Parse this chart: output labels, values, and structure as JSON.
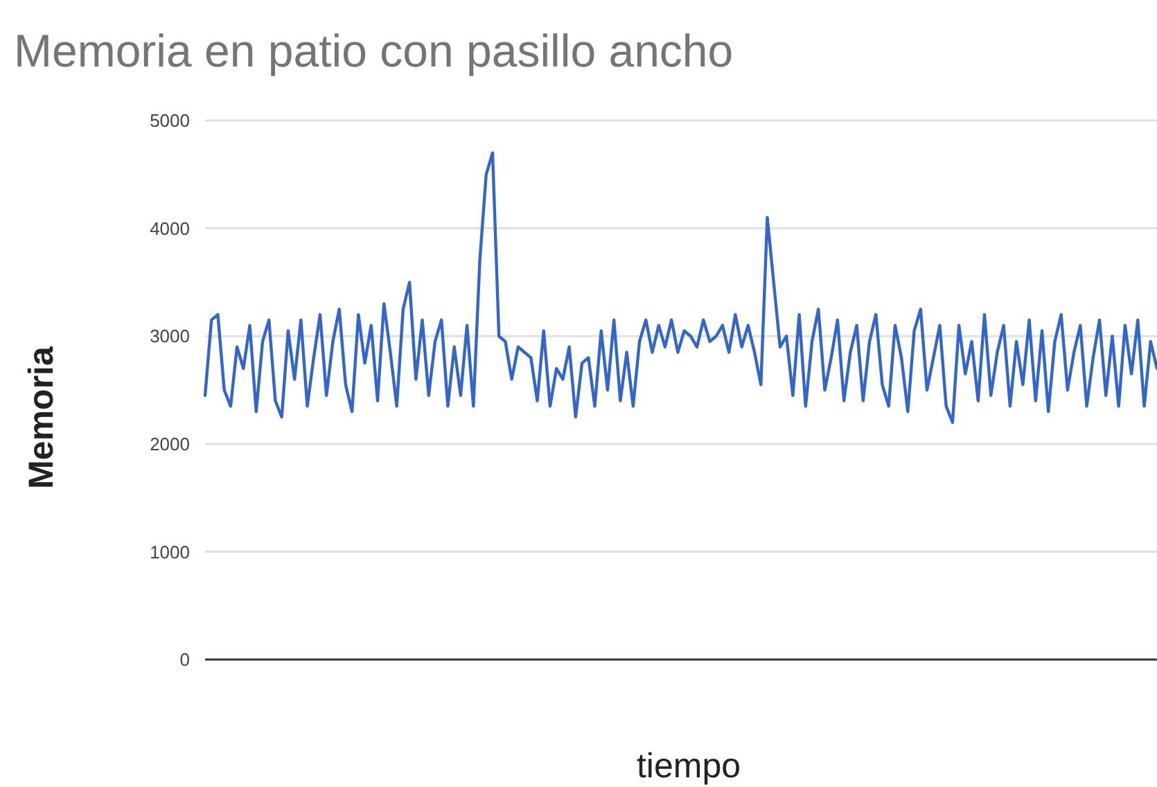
{
  "chart_data": {
    "type": "line",
    "title": "Memoria en patio con pasillo ancho",
    "xlabel": "tiempo",
    "ylabel": "Memoria",
    "categories": [
      null,
      null,
      null,
      null,
      null,
      null,
      null,
      null,
      null,
      null,
      null,
      null,
      null,
      null,
      null,
      null,
      null,
      null,
      null,
      null,
      null,
      null,
      null,
      null,
      null,
      null,
      null,
      null,
      null,
      null,
      null,
      null,
      null,
      null,
      null,
      null,
      null,
      null,
      null,
      null,
      null,
      null,
      null,
      null,
      null,
      null,
      null,
      null,
      null,
      null,
      null,
      null,
      null,
      null,
      null,
      null,
      null,
      null,
      null,
      null,
      null,
      null,
      null,
      null,
      null,
      null,
      null,
      null,
      null,
      null,
      null,
      null,
      null,
      null,
      null,
      null,
      null,
      null,
      null,
      null,
      null,
      null,
      null,
      null,
      null,
      null,
      null,
      null,
      null,
      null,
      null,
      null,
      null,
      null,
      null,
      null,
      null,
      null,
      null,
      null,
      null,
      null,
      null,
      null,
      null,
      null,
      null,
      null,
      null,
      null,
      null,
      null,
      null,
      null,
      null,
      null,
      null,
      null,
      null,
      null,
      null,
      null,
      null,
      null,
      null,
      null,
      null,
      null,
      null,
      null,
      null,
      null,
      null,
      null,
      null,
      null,
      null,
      null,
      null,
      null,
      null,
      null,
      null,
      null,
      null,
      null,
      null,
      null,
      null,
      null
    ],
    "series": [
      {
        "color": "#3366cc",
        "values": [
          2450,
          3150,
          3200,
          2500,
          2350,
          2900,
          2700,
          3100,
          2300,
          2950,
          3150,
          2400,
          2250,
          3050,
          2600,
          3150,
          2350,
          2800,
          3200,
          2450,
          2950,
          3250,
          2550,
          2300,
          3200,
          2750,
          3100,
          2400,
          3300,
          2850,
          2350,
          3250,
          3500,
          2600,
          3150,
          2450,
          2950,
          3150,
          2350,
          2900,
          2450,
          3100,
          2350,
          3700,
          4500,
          4700,
          3000,
          2950,
          2600,
          2900,
          2850,
          2800,
          2400,
          3050,
          2350,
          2700,
          2600,
          2900,
          2250,
          2750,
          2800,
          2350,
          3050,
          2500,
          3150,
          2400,
          2850,
          2350,
          2950,
          3150,
          2850,
          3100,
          2900,
          3150,
          2850,
          3050,
          3000,
          2900,
          3150,
          2950,
          3000,
          3100,
          2850,
          3200,
          2900,
          3100,
          2850,
          2550,
          4100,
          3500,
          2900,
          3000,
          2450,
          3200,
          2350,
          2950,
          3250,
          2500,
          2800,
          3150,
          2400,
          2850,
          3100,
          2400,
          2950,
          3200,
          2550,
          2350,
          3100,
          2800,
          2300,
          3050,
          3250,
          2500,
          2800,
          3100,
          2350,
          2200,
          3100,
          2650,
          2950,
          2400,
          3200,
          2450,
          2850,
          3100,
          2350,
          2950,
          2550,
          3150,
          2400,
          3050,
          2300,
          2950,
          3200,
          2500,
          2850,
          3100,
          2350,
          2800,
          3150,
          2450,
          3000,
          2350,
          3100,
          2650,
          3150,
          2350,
          2950,
          2700
        ]
      }
    ],
    "ylim": [
      0,
      5000
    ],
    "yticks": [
      0,
      1000,
      2000,
      3000,
      4000,
      5000
    ],
    "grid": "y",
    "tick_labels": "y"
  }
}
